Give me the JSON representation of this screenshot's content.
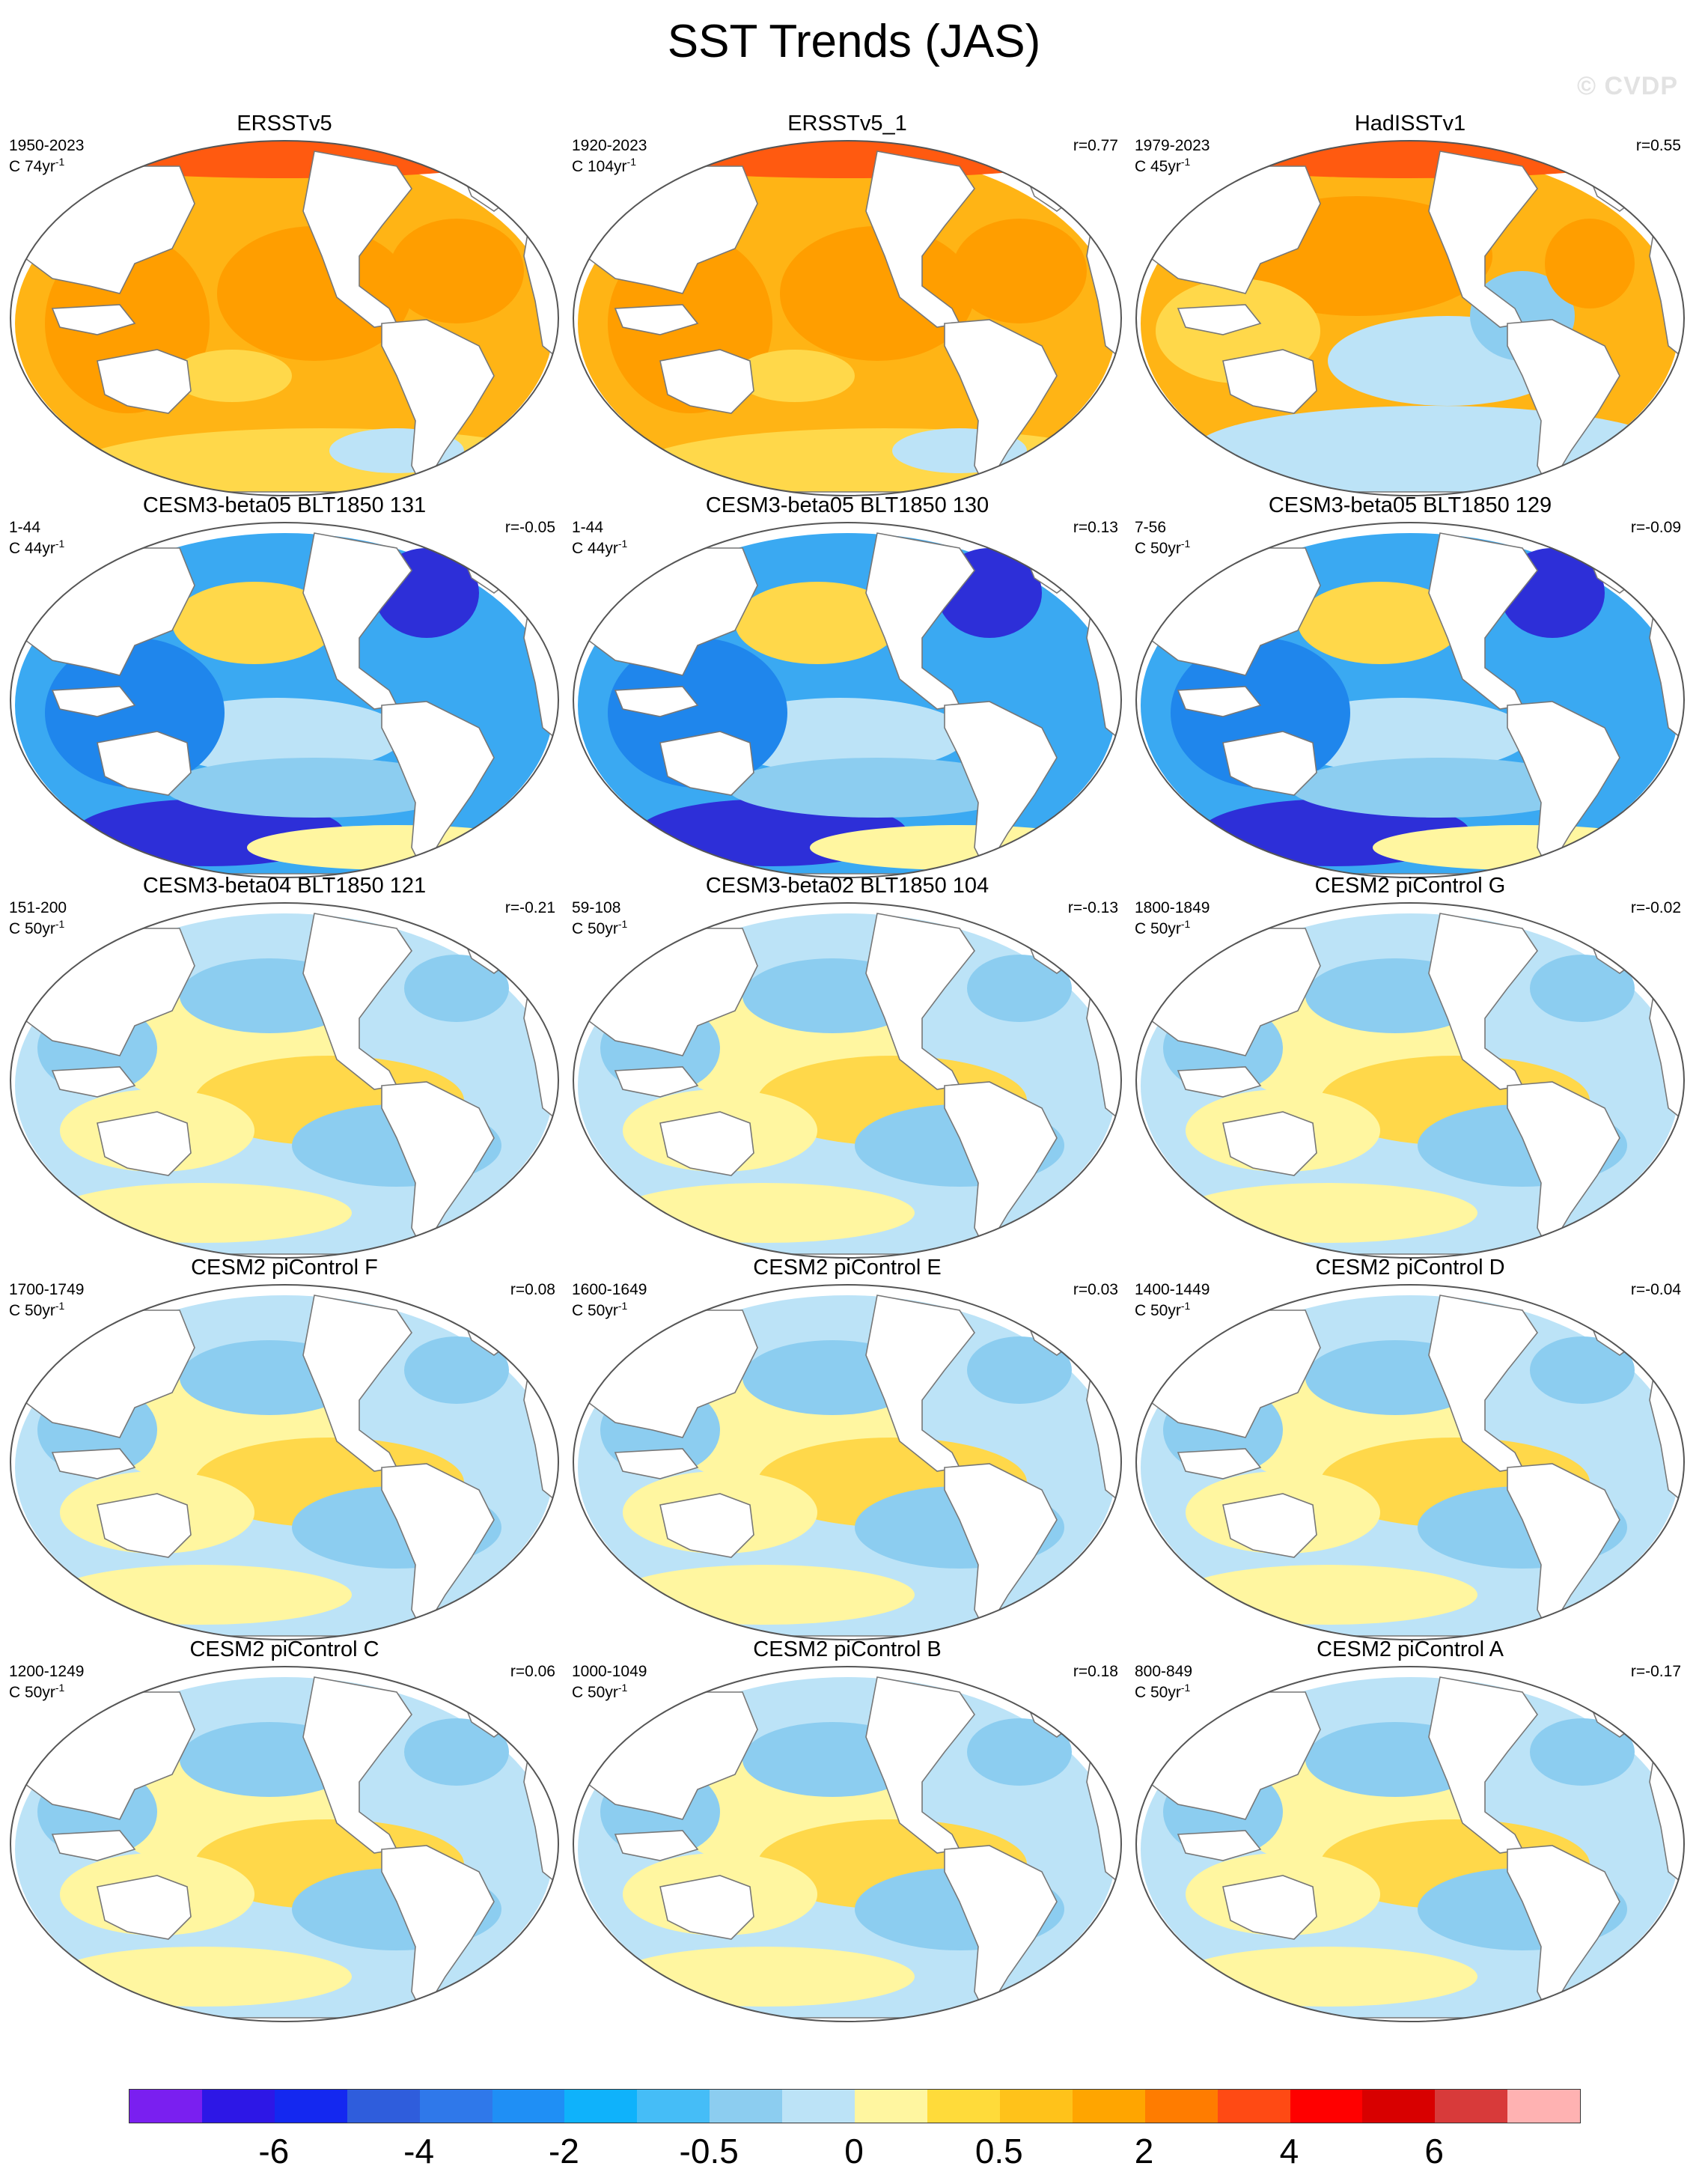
{
  "title": "SST Trends (JAS)",
  "watermark": "© CVDP",
  "panels": [
    {
      "title": "ERSSTv5",
      "years": "1950-2023",
      "units": "C 74yr",
      "r": "",
      "pattern": "warm"
    },
    {
      "title": "ERSSTv5_1",
      "years": "1920-2023",
      "units": "C 104yr",
      "r": "r=0.77",
      "pattern": "warm"
    },
    {
      "title": "HadISSTv1",
      "years": "1979-2023",
      "units": "C 45yr",
      "r": "r=0.55",
      "pattern": "warm-mixed"
    },
    {
      "title": "CESM3-beta05 BLT1850 131",
      "years": "1-44",
      "units": "C 44yr",
      "r": "r=-0.05",
      "pattern": "cold"
    },
    {
      "title": "CESM3-beta05 BLT1850 130",
      "years": "1-44",
      "units": "C 44yr",
      "r": "r=0.13",
      "pattern": "cold"
    },
    {
      "title": "CESM3-beta05 BLT1850 129",
      "years": "7-56",
      "units": "C 50yr",
      "r": "r=-0.09",
      "pattern": "cold"
    },
    {
      "title": "CESM3-beta04 BLT1850 121",
      "years": "151-200",
      "units": "C 50yr",
      "r": "r=-0.21",
      "pattern": "mixed"
    },
    {
      "title": "CESM3-beta02 BLT1850 104",
      "years": "59-108",
      "units": "C 50yr",
      "r": "r=-0.13",
      "pattern": "mixed"
    },
    {
      "title": "CESM2 piControl G",
      "years": "1800-1849",
      "units": "C 50yr",
      "r": "r=-0.02",
      "pattern": "mixed"
    },
    {
      "title": "CESM2 piControl F",
      "years": "1700-1749",
      "units": "C 50yr",
      "r": "r=0.08",
      "pattern": "mixed"
    },
    {
      "title": "CESM2 piControl E",
      "years": "1600-1649",
      "units": "C 50yr",
      "r": "r=0.03",
      "pattern": "mixed"
    },
    {
      "title": "CESM2 piControl D",
      "years": "1400-1449",
      "units": "C 50yr",
      "r": "r=-0.04",
      "pattern": "mixed"
    },
    {
      "title": "CESM2 piControl C",
      "years": "1200-1249",
      "units": "C 50yr",
      "r": "r=0.06",
      "pattern": "mixed"
    },
    {
      "title": "CESM2 piControl B",
      "years": "1000-1049",
      "units": "C 50yr",
      "r": "r=0.18",
      "pattern": "mixed"
    },
    {
      "title": "CESM2 piControl A",
      "years": "800-849",
      "units": "C 50yr",
      "r": "r=-0.17",
      "pattern": "mixed"
    }
  ],
  "colorbar": {
    "colors": [
      "#7a1ff0",
      "#2d17e6",
      "#1428f0",
      "#2f5ddc",
      "#2f78ea",
      "#1f8ff5",
      "#0fb2fb",
      "#45bdf7",
      "#8ccdf0",
      "#bce3f7",
      "#fff6a0",
      "#ffdb3a",
      "#ffc21a",
      "#ffa500",
      "#ff7c00",
      "#ff4a14",
      "#ff0000",
      "#d80000",
      "#d83a3a",
      "#ffb2b2"
    ],
    "labels": [
      "-6",
      "-4",
      "-2",
      "-0.5",
      "0",
      "0.5",
      "2",
      "4",
      "6"
    ]
  },
  "palette": {
    "land": "#ffffff",
    "coast": "#777777",
    "warm_deep": "#ff9e00",
    "warm": "#ffb415",
    "warm_light": "#ffd84a",
    "neutral_warm": "#fff6a0",
    "neutral_cool": "#bce3f7",
    "cool": "#8ccdf0",
    "cold": "#3aa9f2",
    "cold_deep": "#1f86ec",
    "cold_extreme": "#2d2fd8",
    "hot": "#ff5a10"
  }
}
